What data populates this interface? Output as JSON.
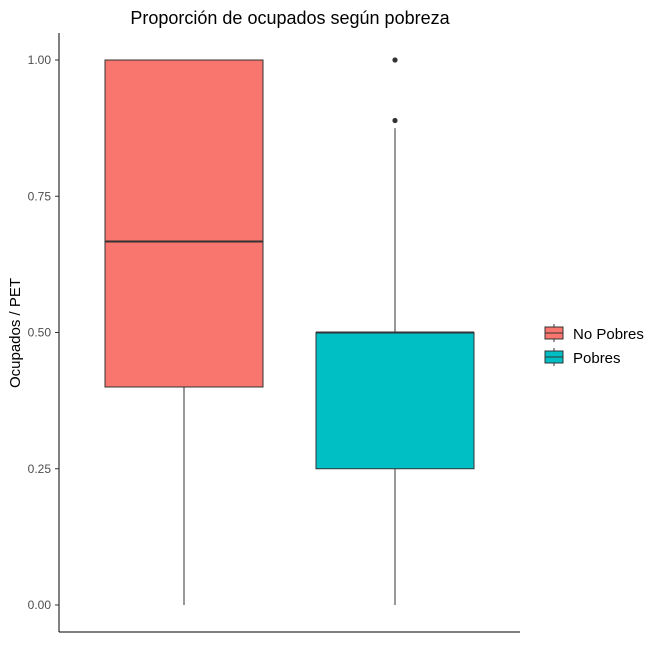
{
  "chart_data": {
    "type": "box",
    "title": "Proporción de ocupados según pobreza",
    "xlabel": "",
    "ylabel": "Ocupados / PET",
    "ylim": [
      -0.05,
      1.05
    ],
    "yticks": [
      0.0,
      0.25,
      0.5,
      0.75,
      1.0
    ],
    "ytick_labels": [
      "0.00",
      "0.25",
      "0.50",
      "0.75",
      "1.00"
    ],
    "grid": false,
    "legend": {
      "position": "right",
      "entries": [
        {
          "label": "No Pobres",
          "color": "#F8766D"
        },
        {
          "label": "Pobres",
          "color": "#00BFC4"
        }
      ]
    },
    "series": [
      {
        "name": "No Pobres",
        "color": "#F8766D",
        "min": 0.0,
        "q1": 0.4,
        "median": 0.667,
        "q3": 1.0,
        "max": 1.0,
        "outliers": []
      },
      {
        "name": "Pobres",
        "color": "#00BFC4",
        "min": 0.0,
        "q1": 0.25,
        "median": 0.5,
        "q3": 0.5,
        "max": 0.875,
        "outliers": [
          0.889,
          1.0
        ]
      }
    ]
  }
}
